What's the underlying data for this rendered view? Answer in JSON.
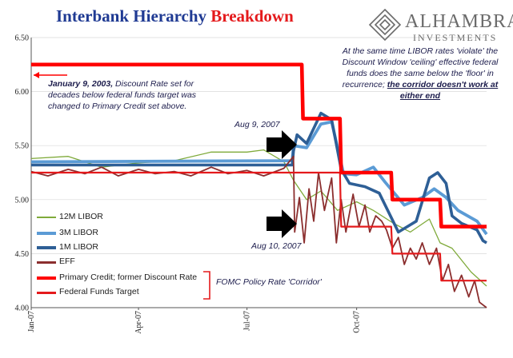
{
  "title": {
    "part1": "Interbank Hierarchy",
    "part2": "Breakdown"
  },
  "logo": {
    "name": "ALHAMBRA",
    "sub": "INVESTMENTS"
  },
  "annotations": {
    "left_note_bold": "January 9, 2003,",
    "left_note_rest": " Discount Rate set for decades below federal funds target was changed to Primary Credit set above.",
    "right_note_plain": "At the same time LIBOR rates 'violate' the Discount Window 'ceiling' effective federal funds does the same below the 'floor' in recurrence; ",
    "right_note_emph": "the corridor doesn't work at either end",
    "aug9": "Aug 9, 2007",
    "aug10": "Aug 10, 2007",
    "corridor": "FOMC Policy Rate 'Corridor'"
  },
  "colors": {
    "libor12m": "#7faa3a",
    "libor3m": "#5b9bd5",
    "libor1m": "#2e5f96",
    "eff": "#8b2e2e",
    "primary_credit": "#ff0000",
    "fed_funds_target": "#e41a1c",
    "arrow": "#000000"
  },
  "chart_data": {
    "type": "line",
    "title": "Interbank Hierarchy Breakdown",
    "ylim": [
      4.0,
      6.5
    ],
    "y_ticks": [
      "6.50",
      "6.00",
      "5.50",
      "5.00",
      "4.50",
      "4.00"
    ],
    "x_ticks": [
      "Jan-07",
      "Apr-07",
      "Jul-07",
      "Oct-07"
    ],
    "x_range": [
      "2007-01-01",
      "2008-01-18"
    ],
    "legend_position": "bottom-left",
    "series": [
      {
        "name": "12M LIBOR",
        "points": [
          [
            "2007-01-01",
            5.38
          ],
          [
            "2007-02-01",
            5.4
          ],
          [
            "2007-03-01",
            5.3
          ],
          [
            "2007-04-01",
            5.34
          ],
          [
            "2007-05-01",
            5.36
          ],
          [
            "2007-06-01",
            5.44
          ],
          [
            "2007-07-01",
            5.44
          ],
          [
            "2007-07-15",
            5.46
          ],
          [
            "2007-08-01",
            5.35
          ],
          [
            "2007-08-09",
            5.18
          ],
          [
            "2007-08-20",
            5.0
          ],
          [
            "2007-09-01",
            5.08
          ],
          [
            "2007-09-15",
            4.9
          ],
          [
            "2007-10-01",
            4.98
          ],
          [
            "2007-10-15",
            4.9
          ],
          [
            "2007-11-01",
            4.78
          ],
          [
            "2007-11-15",
            4.7
          ],
          [
            "2007-12-01",
            4.82
          ],
          [
            "2007-12-10",
            4.6
          ],
          [
            "2007-12-20",
            4.55
          ],
          [
            "2008-01-05",
            4.33
          ],
          [
            "2008-01-18",
            4.2
          ]
        ]
      },
      {
        "name": "3M LIBOR",
        "points": [
          [
            "2007-01-01",
            5.35
          ],
          [
            "2007-08-08",
            5.36
          ],
          [
            "2007-08-09",
            5.5
          ],
          [
            "2007-08-20",
            5.48
          ],
          [
            "2007-09-01",
            5.7
          ],
          [
            "2007-09-10",
            5.72
          ],
          [
            "2007-09-20",
            5.24
          ],
          [
            "2007-10-01",
            5.23
          ],
          [
            "2007-10-15",
            5.3
          ],
          [
            "2007-10-25",
            5.16
          ],
          [
            "2007-11-10",
            4.95
          ],
          [
            "2007-11-25",
            5.02
          ],
          [
            "2007-12-05",
            5.1
          ],
          [
            "2007-12-15",
            5.02
          ],
          [
            "2007-12-25",
            4.9
          ],
          [
            "2008-01-10",
            4.8
          ],
          [
            "2008-01-18",
            4.68
          ]
        ]
      },
      {
        "name": "1M LIBOR",
        "points": [
          [
            "2007-01-01",
            5.32
          ],
          [
            "2007-08-08",
            5.32
          ],
          [
            "2007-08-09",
            5.45
          ],
          [
            "2007-08-12",
            5.6
          ],
          [
            "2007-08-20",
            5.52
          ],
          [
            "2007-09-01",
            5.8
          ],
          [
            "2007-09-10",
            5.74
          ],
          [
            "2007-09-18",
            5.28
          ],
          [
            "2007-09-25",
            5.15
          ],
          [
            "2007-10-08",
            5.12
          ],
          [
            "2007-10-20",
            5.06
          ],
          [
            "2007-11-05",
            4.7
          ],
          [
            "2007-11-20",
            4.8
          ],
          [
            "2007-12-01",
            5.2
          ],
          [
            "2007-12-08",
            5.25
          ],
          [
            "2007-12-15",
            5.15
          ],
          [
            "2007-12-20",
            4.85
          ],
          [
            "2007-12-28",
            4.78
          ],
          [
            "2008-01-10",
            4.72
          ],
          [
            "2008-01-15",
            4.62
          ],
          [
            "2008-01-18",
            4.6
          ]
        ]
      },
      {
        "name": "EFF",
        "points": [
          [
            "2007-01-01",
            5.26
          ],
          [
            "2007-01-15",
            5.22
          ],
          [
            "2007-02-01",
            5.28
          ],
          [
            "2007-02-15",
            5.24
          ],
          [
            "2007-03-01",
            5.3
          ],
          [
            "2007-03-15",
            5.22
          ],
          [
            "2007-04-01",
            5.28
          ],
          [
            "2007-04-15",
            5.24
          ],
          [
            "2007-05-01",
            5.26
          ],
          [
            "2007-05-15",
            5.22
          ],
          [
            "2007-06-01",
            5.3
          ],
          [
            "2007-06-15",
            5.24
          ],
          [
            "2007-07-01",
            5.27
          ],
          [
            "2007-07-15",
            5.22
          ],
          [
            "2007-08-01",
            5.29
          ],
          [
            "2007-08-09",
            5.4
          ],
          [
            "2007-08-10",
            4.7
          ],
          [
            "2007-08-14",
            5.02
          ],
          [
            "2007-08-18",
            4.6
          ],
          [
            "2007-08-22",
            5.1
          ],
          [
            "2007-08-26",
            4.8
          ],
          [
            "2007-08-30",
            5.25
          ],
          [
            "2007-09-04",
            4.9
          ],
          [
            "2007-09-10",
            5.2
          ],
          [
            "2007-09-14",
            4.6
          ],
          [
            "2007-09-18",
            5.0
          ],
          [
            "2007-09-22",
            4.7
          ],
          [
            "2007-09-28",
            5.05
          ],
          [
            "2007-10-03",
            4.75
          ],
          [
            "2007-10-08",
            4.95
          ],
          [
            "2007-10-12",
            4.7
          ],
          [
            "2007-10-17",
            4.85
          ],
          [
            "2007-10-22",
            4.8
          ],
          [
            "2007-10-26",
            4.72
          ],
          [
            "2007-10-31",
            4.55
          ],
          [
            "2007-11-05",
            4.65
          ],
          [
            "2007-11-10",
            4.4
          ],
          [
            "2007-11-15",
            4.55
          ],
          [
            "2007-11-20",
            4.45
          ],
          [
            "2007-11-25",
            4.6
          ],
          [
            "2007-12-01",
            4.4
          ],
          [
            "2007-12-07",
            4.55
          ],
          [
            "2007-12-12",
            4.25
          ],
          [
            "2007-12-17",
            4.4
          ],
          [
            "2007-12-22",
            4.15
          ],
          [
            "2007-12-28",
            4.3
          ],
          [
            "2008-01-03",
            4.1
          ],
          [
            "2008-01-08",
            4.25
          ],
          [
            "2008-01-12",
            4.05
          ],
          [
            "2008-01-18",
            4.0
          ]
        ]
      },
      {
        "name": "Primary Credit; former Discount Rate",
        "step": true,
        "points": [
          [
            "2007-01-01",
            6.25
          ],
          [
            "2007-08-16",
            6.25
          ],
          [
            "2007-08-17",
            5.75
          ],
          [
            "2007-09-17",
            5.75
          ],
          [
            "2007-09-18",
            5.25
          ],
          [
            "2007-10-30",
            5.25
          ],
          [
            "2007-10-31",
            5.0
          ],
          [
            "2007-12-10",
            5.0
          ],
          [
            "2007-12-11",
            4.75
          ],
          [
            "2008-01-18",
            4.75
          ]
        ]
      },
      {
        "name": "Federal Funds Target",
        "step": true,
        "points": [
          [
            "2007-01-01",
            5.25
          ],
          [
            "2007-09-17",
            5.25
          ],
          [
            "2007-09-18",
            4.75
          ],
          [
            "2007-10-30",
            4.75
          ],
          [
            "2007-10-31",
            4.5
          ],
          [
            "2007-12-10",
            4.5
          ],
          [
            "2007-12-11",
            4.25
          ],
          [
            "2008-01-18",
            4.25
          ]
        ]
      }
    ]
  }
}
